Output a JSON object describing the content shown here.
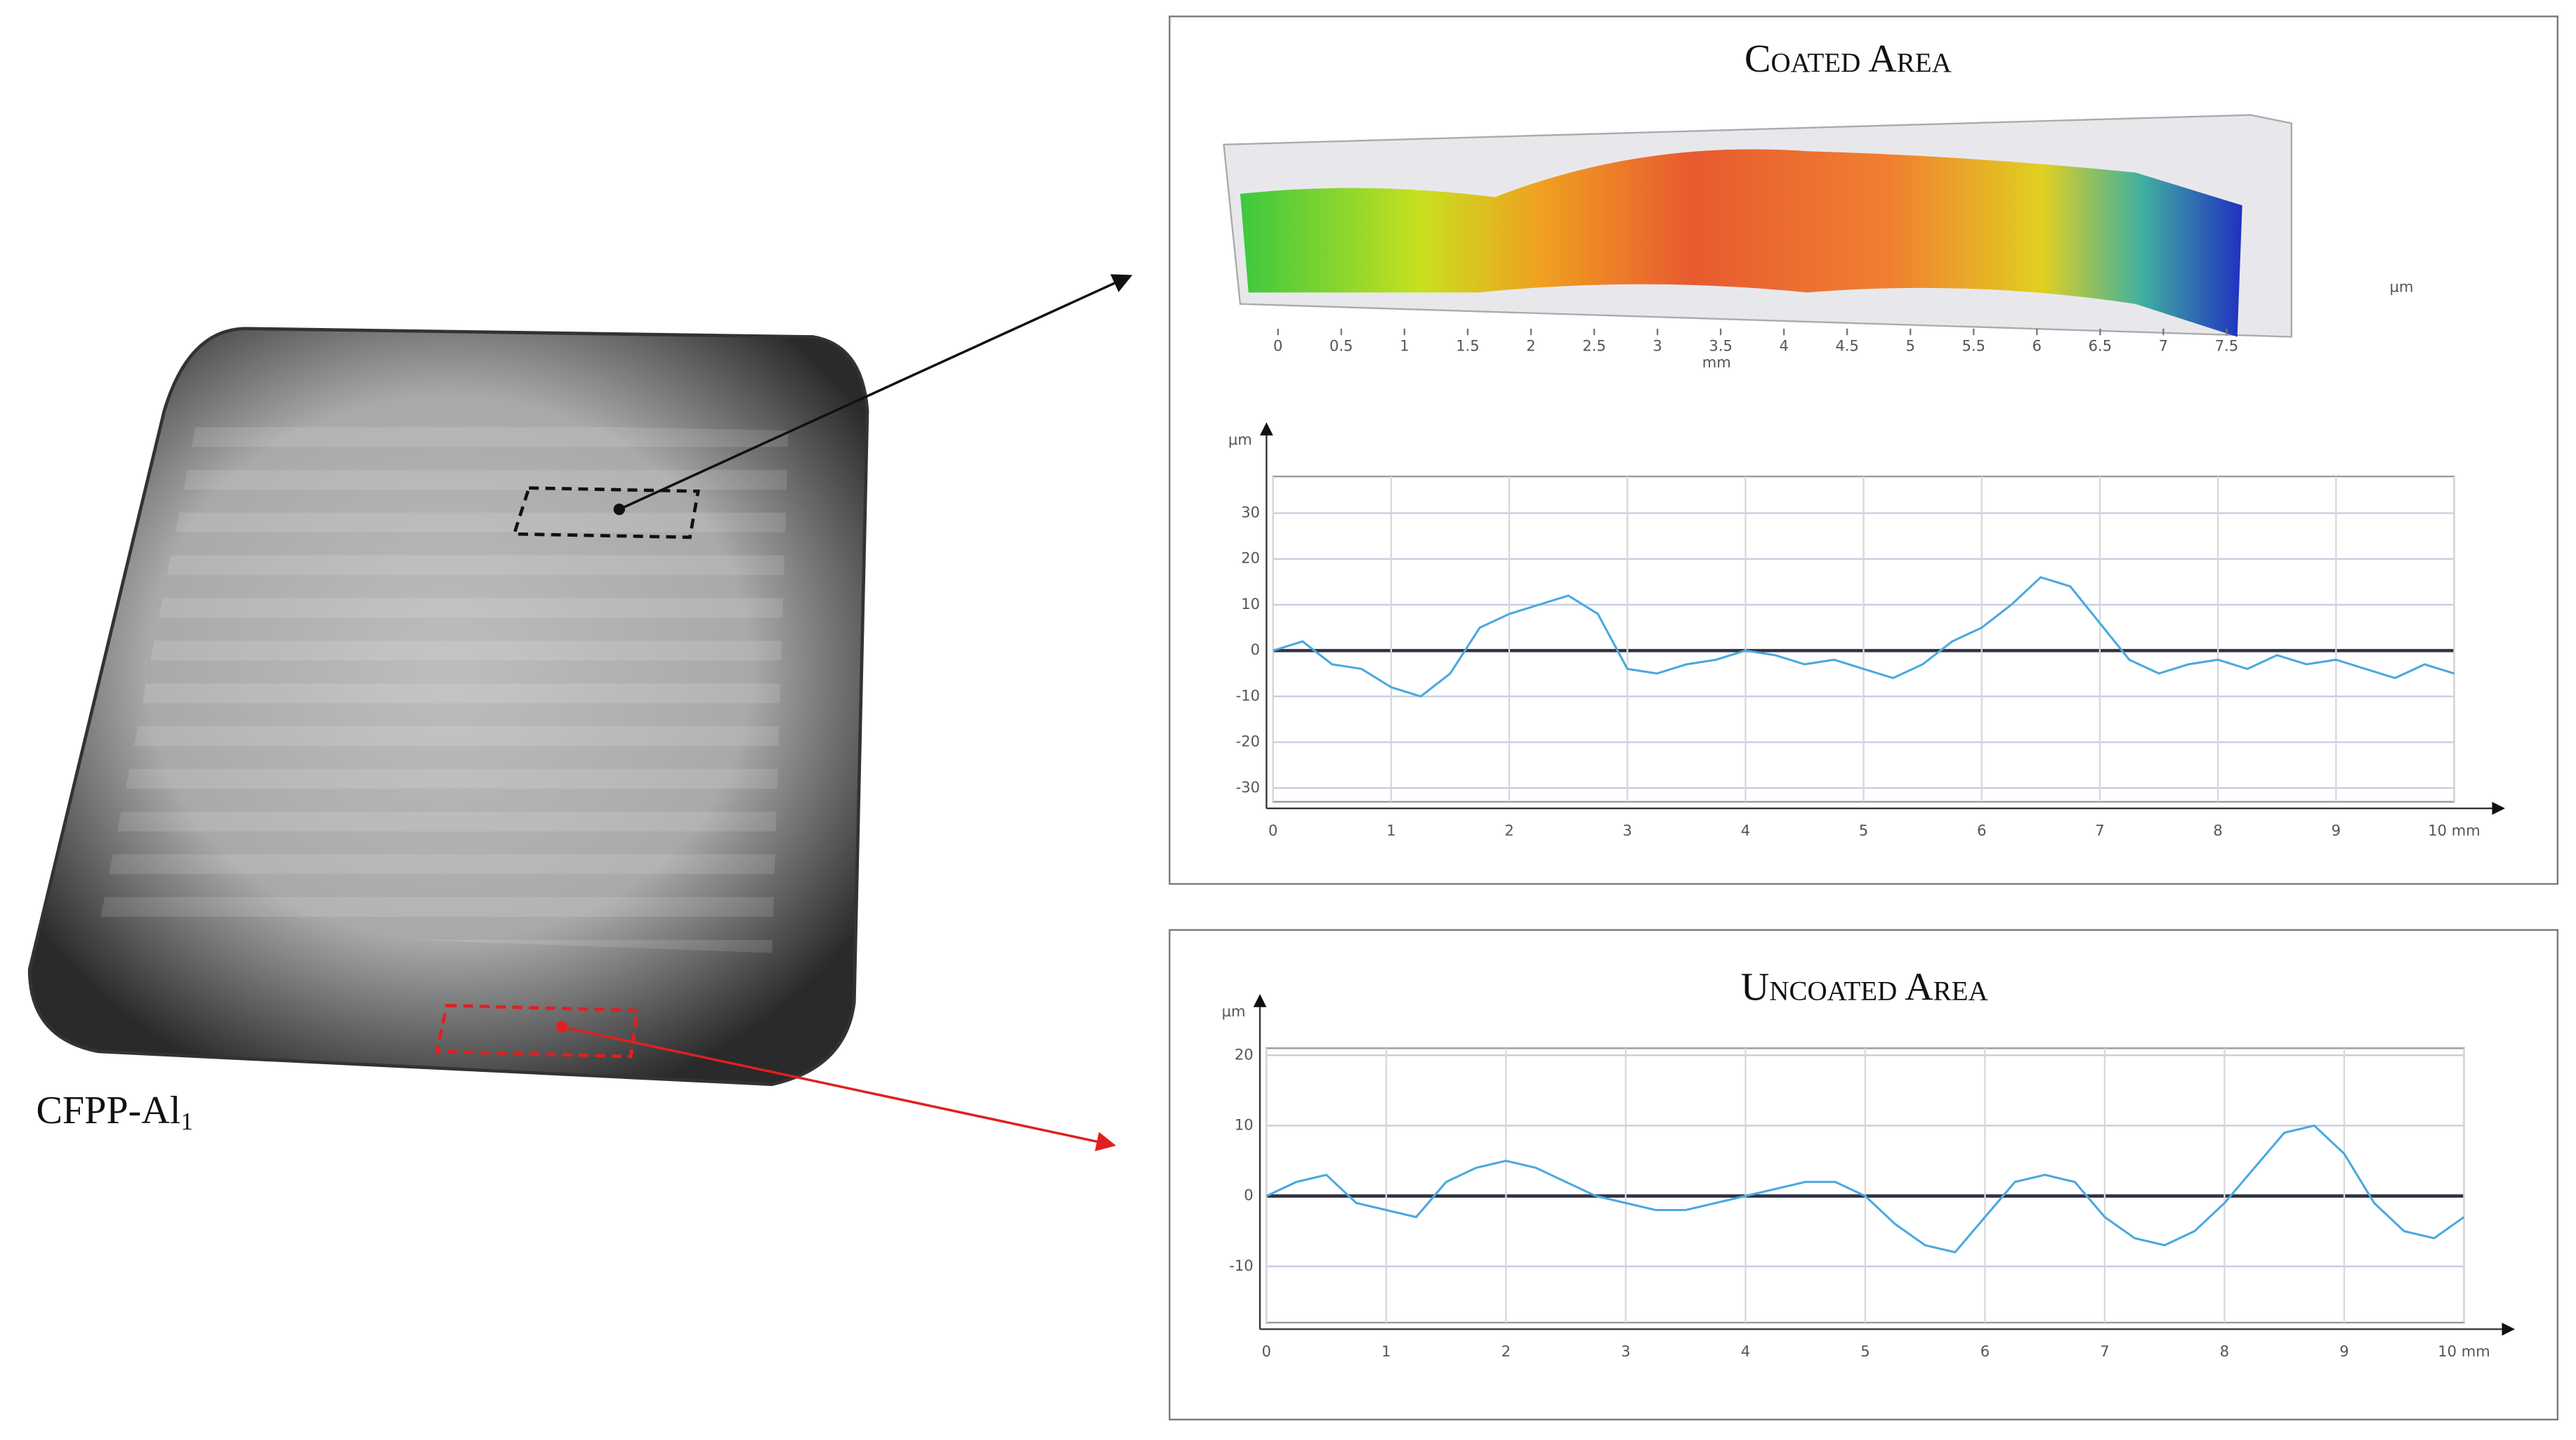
{
  "label": "CFPP-Al",
  "label_subscript": "1",
  "chart_data": [
    {
      "type": "surface",
      "title": "Coated Area",
      "x_label": "mm",
      "z_label": "µm",
      "xlim": [
        0,
        8
      ],
      "xticks": [
        0,
        0.5,
        1,
        1.5,
        2,
        2.5,
        3,
        3.5,
        4,
        4.5,
        5,
        5.5,
        6,
        6.5,
        7,
        7.5
      ]
    },
    {
      "type": "line",
      "y_label": "µm",
      "color": "#4aa8e0",
      "grid": true,
      "x": [
        0,
        0.25,
        0.5,
        0.75,
        1,
        1.25,
        1.5,
        1.75,
        2,
        2.25,
        2.5,
        2.75,
        3,
        3.25,
        3.5,
        3.75,
        4,
        4.25,
        4.5,
        4.75,
        5,
        5.25,
        5.5,
        5.75,
        6,
        6.25,
        6.5,
        6.75,
        7,
        7.25,
        7.5,
        7.75,
        8,
        8.25,
        8.5,
        8.75,
        9,
        9.25,
        9.5,
        9.75,
        10
      ],
      "values": [
        0,
        2,
        -3,
        -4,
        -8,
        -10,
        -5,
        5,
        8,
        10,
        12,
        8,
        -4,
        -5,
        -3,
        -2,
        0,
        -1,
        -3,
        -2,
        -4,
        -6,
        -3,
        2,
        5,
        10,
        16,
        14,
        6,
        -2,
        -5,
        -3,
        -2,
        -4,
        -1,
        -3,
        -2,
        -4,
        -6,
        -3,
        -5
      ],
      "xlim": [
        0,
        10
      ],
      "ylim": [
        -33,
        38
      ],
      "xticks": [
        0,
        1,
        2,
        3,
        4,
        5,
        6,
        7,
        8,
        9,
        {
          "value": 10,
          "label": "10 mm"
        }
      ],
      "yticks": [
        -30,
        -20,
        -10,
        0,
        10,
        20,
        30
      ]
    },
    {
      "type": "line",
      "title": "Uncoated Area",
      "y_label": "µm",
      "color": "#4aa8e0",
      "grid": true,
      "x": [
        0,
        0.25,
        0.5,
        0.75,
        1,
        1.25,
        1.5,
        1.75,
        2,
        2.25,
        2.5,
        2.75,
        3,
        3.25,
        3.5,
        3.75,
        4,
        4.25,
        4.5,
        4.75,
        5,
        5.25,
        5.5,
        5.75,
        6,
        6.25,
        6.5,
        6.75,
        7,
        7.25,
        7.5,
        7.75,
        8,
        8.25,
        8.5,
        8.75,
        9,
        9.25,
        9.5,
        9.75,
        10
      ],
      "values": [
        0,
        2,
        3,
        -1,
        -2,
        -3,
        2,
        4,
        5,
        4,
        2,
        0,
        -1,
        -2,
        -2,
        -1,
        0,
        1,
        2,
        2,
        0,
        -4,
        -7,
        -8,
        -3,
        2,
        3,
        2,
        -3,
        -6,
        -7,
        -5,
        -1,
        4,
        9,
        10,
        6,
        -1,
        -5,
        -6,
        -3
      ],
      "xlim": [
        0,
        10
      ],
      "ylim": [
        -18,
        21
      ],
      "xticks": [
        0,
        1,
        2,
        3,
        4,
        5,
        6,
        7,
        8,
        9,
        {
          "value": 10,
          "label": "10 mm"
        }
      ],
      "yticks": [
        -10,
        0,
        10,
        20
      ]
    }
  ]
}
